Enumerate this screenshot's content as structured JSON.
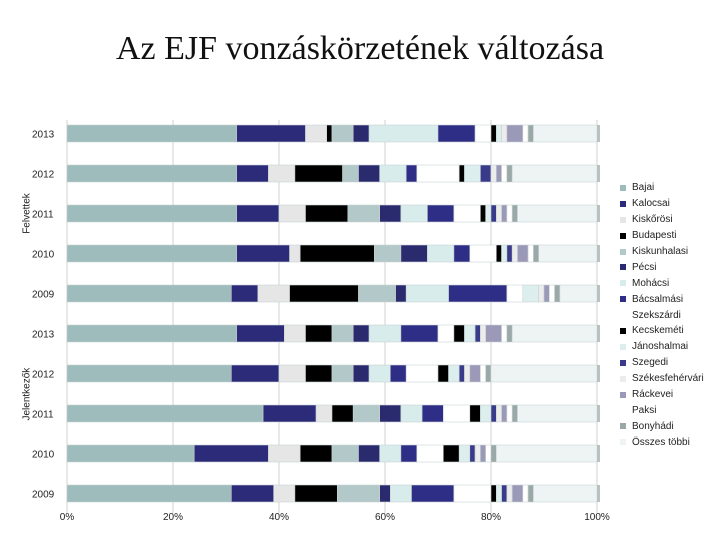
{
  "chart_data": {
    "type": "bar",
    "orientation": "horizontal",
    "stacked": "percent",
    "title": "Az EJF vonzáskörzetének változása",
    "groups": [
      {
        "name": "Felvettek",
        "categories": [
          "2013",
          "2012",
          "2011",
          "2010",
          "2009"
        ]
      },
      {
        "name": "Jelentkezők",
        "categories": [
          "2013",
          "2012",
          "2011",
          "2010",
          "2009"
        ]
      }
    ],
    "x_ticks": [
      "0%",
      "20%",
      "40%",
      "60%",
      "80%",
      "100%"
    ],
    "xlim": [
      0,
      100
    ],
    "legend_position": "right",
    "series": [
      {
        "name": "Bajai",
        "color": "#9ebcbc",
        "values": [
          32,
          32,
          32,
          32,
          31,
          32,
          31,
          37,
          24,
          31
        ]
      },
      {
        "name": "Kalocsai",
        "color": "#2b2b7a",
        "values": [
          13,
          6,
          8,
          10,
          5,
          9,
          9,
          10,
          14,
          8
        ]
      },
      {
        "name": "Kiskőrösi",
        "color": "#e6e6e6",
        "values": [
          4,
          5,
          5,
          2,
          6,
          4,
          5,
          3,
          6,
          4
        ]
      },
      {
        "name": "Budapesti",
        "color": "#000000",
        "values": [
          1,
          9,
          8,
          14,
          13,
          5,
          5,
          4,
          6,
          8
        ]
      },
      {
        "name": "Kiskunhalasi",
        "color": "#b3c8c8",
        "values": [
          4,
          3,
          6,
          5,
          7,
          4,
          4,
          5,
          5,
          8
        ]
      },
      {
        "name": "Pécsi",
        "color": "#2a2a6e",
        "values": [
          3,
          4,
          4,
          5,
          2,
          3,
          3,
          4,
          4,
          2
        ]
      },
      {
        "name": "Mohácsi",
        "color": "#d8ecec",
        "values": [
          13,
          5,
          5,
          5,
          8,
          6,
          4,
          4,
          4,
          4
        ]
      },
      {
        "name": "Bácsalmási",
        "color": "#2e2e86",
        "values": [
          7,
          2,
          5,
          3,
          11,
          7,
          3,
          4,
          3,
          8
        ]
      },
      {
        "name": "Szekszárdi",
        "color": "#ffffff",
        "values": [
          3,
          8,
          5,
          5,
          3,
          3,
          6,
          5,
          5,
          7
        ]
      },
      {
        "name": "Kecskeméti",
        "color": "#000000",
        "values": [
          1,
          1,
          1,
          1,
          0,
          2,
          2,
          2,
          3,
          1
        ]
      },
      {
        "name": "Jánoshalmai",
        "color": "#ddeeee",
        "values": [
          1,
          3,
          1,
          1,
          3,
          2,
          2,
          2,
          2,
          1
        ]
      },
      {
        "name": "Szegedi",
        "color": "#3a3a8a",
        "values": [
          0,
          2,
          1,
          1,
          0,
          1,
          1,
          1,
          1,
          1
        ]
      },
      {
        "name": "Székesfehérvári",
        "color": "#ececec",
        "values": [
          1,
          1,
          1,
          1,
          1,
          1,
          1,
          1,
          1,
          1
        ]
      },
      {
        "name": "Ráckevei",
        "color": "#9a9ab8",
        "values": [
          3,
          1,
          1,
          2,
          1,
          3,
          2,
          1,
          1,
          2
        ]
      },
      {
        "name": "Paksi",
        "color": "#ffffff",
        "values": [
          1,
          1,
          1,
          1,
          1,
          1,
          1,
          1,
          1,
          1
        ]
      },
      {
        "name": "Bonyhádi",
        "color": "#9ba8a8",
        "values": [
          1,
          1,
          1,
          1,
          1,
          1,
          1,
          1,
          1,
          1
        ]
      },
      {
        "name": "Összes többi",
        "color": "#eef4f4",
        "values": [
          12,
          16,
          15,
          11,
          7,
          16,
          20,
          15,
          19,
          12
        ]
      }
    ]
  }
}
